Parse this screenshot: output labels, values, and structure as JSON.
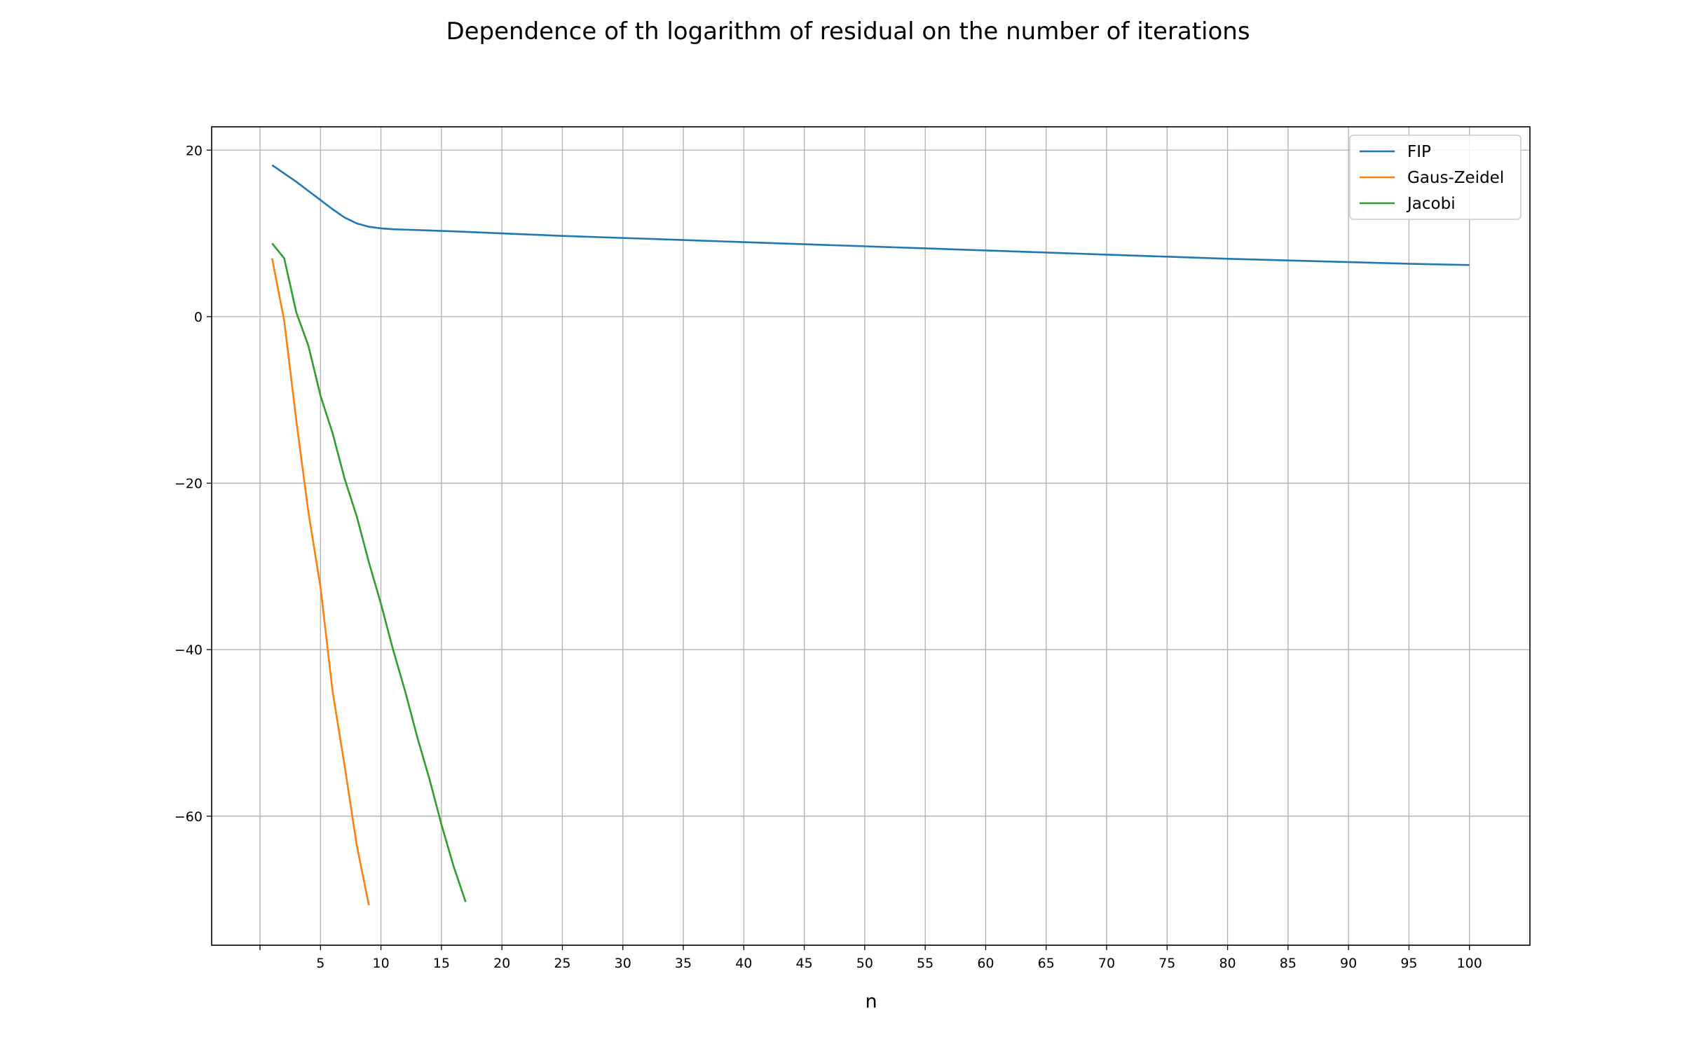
{
  "chart_data": {
    "type": "line",
    "title": "Dependence of th logarithm of residual on the number of iterations",
    "xlabel": "n",
    "ylabel": "",
    "xlim": [
      -4,
      105
    ],
    "ylim": [
      -75.5,
      22.8
    ],
    "x_ticks": [
      5,
      10,
      15,
      20,
      25,
      30,
      35,
      40,
      45,
      50,
      55,
      60,
      65,
      70,
      75,
      80,
      85,
      90,
      95,
      100
    ],
    "x_tick_labels": [
      "5",
      "10",
      "15",
      "20",
      "25",
      "30",
      "35",
      "40",
      "45",
      "50",
      "55",
      "60",
      "65",
      "70",
      "75",
      "80",
      "85",
      "90",
      "95",
      "100"
    ],
    "y_ticks": [
      20,
      0,
      -20,
      -40,
      -60
    ],
    "y_tick_labels": [
      "20",
      "0",
      "−20",
      "−40",
      "−60"
    ],
    "grid": true,
    "legend_position": "top-right",
    "series": [
      {
        "name": "FIP",
        "color": "#1f77b4",
        "x": [
          1,
          2,
          3,
          4,
          5,
          6,
          7,
          8,
          9,
          10,
          11,
          12,
          13,
          14,
          15,
          20,
          25,
          30,
          35,
          40,
          45,
          50,
          55,
          60,
          65,
          70,
          75,
          80,
          85,
          90,
          95,
          100
        ],
        "y": [
          18.2,
          17.2,
          16.2,
          15.1,
          14.0,
          12.9,
          11.9,
          11.2,
          10.8,
          10.6,
          10.5,
          10.45,
          10.4,
          10.35,
          10.3,
          10.0,
          9.7,
          9.45,
          9.2,
          8.95,
          8.7,
          8.45,
          8.2,
          7.95,
          7.7,
          7.45,
          7.2,
          6.95,
          6.75,
          6.55,
          6.35,
          6.2
        ]
      },
      {
        "name": "Gaus-Zeidel",
        "color": "#ff7f0e",
        "x": [
          1,
          2,
          3,
          4,
          5,
          6,
          7,
          8,
          9
        ],
        "y": [
          7.0,
          -0.5,
          -12.5,
          -23.5,
          -32.5,
          -45.0,
          -54.0,
          -63.5,
          -70.7
        ]
      },
      {
        "name": "Jacobi",
        "color": "#2ca02c",
        "x": [
          1,
          2,
          3,
          4,
          5,
          6,
          7,
          8,
          9,
          10,
          11,
          12,
          13,
          14,
          15,
          16,
          17
        ],
        "y": [
          8.8,
          7.0,
          0.5,
          -3.5,
          -9.5,
          -14.0,
          -19.5,
          -24.0,
          -29.5,
          -34.5,
          -40.0,
          -45.0,
          -50.5,
          -55.5,
          -61.0,
          -66.0,
          -70.3
        ]
      }
    ]
  }
}
